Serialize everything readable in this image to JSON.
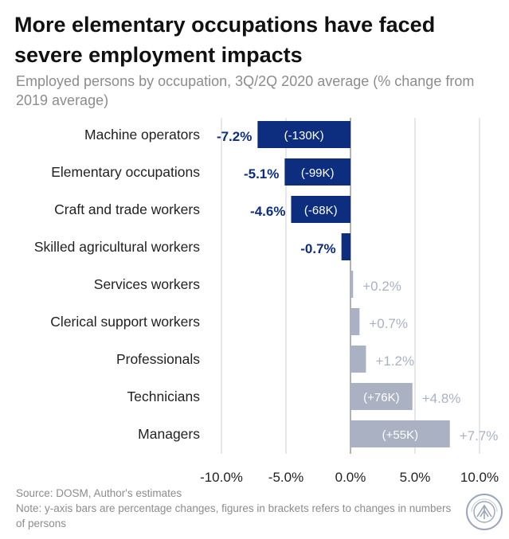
{
  "header": {
    "title": "More elementary occupations have faced severe employment impacts",
    "subtitle": "Employed persons by occupation, 3Q/2Q 2020 average (% change from 2019 average)"
  },
  "footer": {
    "source": "Source: DOSM, Author's estimates",
    "note": "Note: y-axis bars are percentage changes, figures in brackets refers to changes in numbers of persons"
  },
  "colors": {
    "negative": "#0d2d7e",
    "positive": "#a9b1c3",
    "negative_label": "#0d2d7e",
    "positive_label": "#a9b1c3",
    "grid": "#cfcfcf",
    "zero_line": "#8a8a8a"
  },
  "chart_data": {
    "type": "bar",
    "orientation": "horizontal",
    "categories": [
      "Machine operators",
      "Elementary occupations",
      "Craft and trade workers",
      "Skilled agricultural workers",
      "Services workers",
      "Clerical support workers",
      "Professionals",
      "Technicians",
      "Managers"
    ],
    "values": [
      -7.2,
      -5.1,
      -4.6,
      -0.7,
      0.2,
      0.7,
      1.2,
      4.8,
      7.7
    ],
    "value_labels": [
      "-7.2%",
      "-5.1%",
      "-4.6%",
      "-0.7%",
      "+0.2%",
      "+0.7%",
      "+1.2%",
      "+4.8%",
      "+7.7%"
    ],
    "persons_labels": [
      "(-130K)",
      "(-99K)",
      "(-68K)",
      "",
      "",
      "",
      "",
      "(+76K)",
      "(+55K)"
    ],
    "xlim": [
      -12,
      12
    ],
    "xticks": [
      -10,
      -5,
      0,
      5,
      10
    ],
    "xtick_labels": [
      "-10.0%",
      "-5.0%",
      "0.0%",
      "5.0%",
      "10.0%"
    ],
    "grid": true,
    "legend": "none"
  }
}
